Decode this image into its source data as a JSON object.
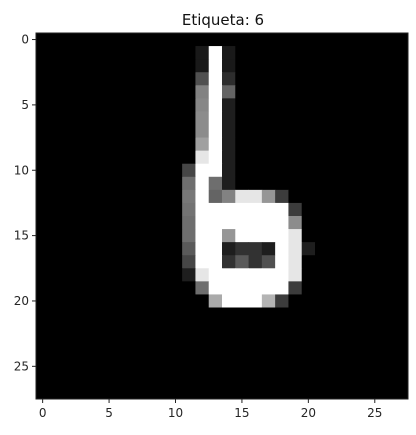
{
  "chart_data": {
    "type": "heatmap",
    "title": "Etiqueta: 6",
    "xlabel": "",
    "ylabel": "",
    "colormap": "gray",
    "value_range": [
      0,
      255
    ],
    "xlim": [
      -0.5,
      27.5
    ],
    "ylim": [
      27.5,
      -0.5
    ],
    "x_ticks": [
      "0",
      "5",
      "10",
      "15",
      "20",
      "25"
    ],
    "y_ticks": [
      "0",
      "5",
      "10",
      "15",
      "20",
      "25"
    ],
    "grid": false,
    "legend": "none",
    "rows": 28,
    "cols": 28,
    "values": [
      [
        0,
        0,
        0,
        0,
        0,
        0,
        0,
        0,
        0,
        0,
        0,
        0,
        0,
        0,
        0,
        0,
        0,
        0,
        0,
        0,
        0,
        0,
        0,
        0,
        0,
        0,
        0,
        0
      ],
      [
        0,
        0,
        0,
        0,
        0,
        0,
        0,
        0,
        0,
        0,
        0,
        0,
        25,
        255,
        25,
        0,
        0,
        0,
        0,
        0,
        0,
        0,
        0,
        0,
        0,
        0,
        0,
        0
      ],
      [
        0,
        0,
        0,
        0,
        0,
        0,
        0,
        0,
        0,
        0,
        0,
        0,
        25,
        255,
        25,
        0,
        0,
        0,
        0,
        0,
        0,
        0,
        0,
        0,
        0,
        0,
        0,
        0
      ],
      [
        0,
        0,
        0,
        0,
        0,
        0,
        0,
        0,
        0,
        0,
        0,
        0,
        80,
        255,
        45,
        0,
        0,
        0,
        0,
        0,
        0,
        0,
        0,
        0,
        0,
        0,
        0,
        0
      ],
      [
        0,
        0,
        0,
        0,
        0,
        0,
        0,
        0,
        0,
        0,
        0,
        0,
        130,
        255,
        100,
        0,
        0,
        0,
        0,
        0,
        0,
        0,
        0,
        0,
        0,
        0,
        0,
        0
      ],
      [
        0,
        0,
        0,
        0,
        0,
        0,
        0,
        0,
        0,
        0,
        0,
        0,
        135,
        255,
        30,
        0,
        0,
        0,
        0,
        0,
        0,
        0,
        0,
        0,
        0,
        0,
        0,
        0
      ],
      [
        0,
        0,
        0,
        0,
        0,
        0,
        0,
        0,
        0,
        0,
        0,
        0,
        140,
        255,
        30,
        0,
        0,
        0,
        0,
        0,
        0,
        0,
        0,
        0,
        0,
        0,
        0,
        0
      ],
      [
        0,
        0,
        0,
        0,
        0,
        0,
        0,
        0,
        0,
        0,
        0,
        0,
        140,
        255,
        30,
        0,
        0,
        0,
        0,
        0,
        0,
        0,
        0,
        0,
        0,
        0,
        0,
        0
      ],
      [
        0,
        0,
        0,
        0,
        0,
        0,
        0,
        0,
        0,
        0,
        0,
        0,
        160,
        255,
        30,
        0,
        0,
        0,
        0,
        0,
        0,
        0,
        0,
        0,
        0,
        0,
        0,
        0
      ],
      [
        0,
        0,
        0,
        0,
        0,
        0,
        0,
        0,
        0,
        0,
        0,
        0,
        230,
        255,
        30,
        0,
        0,
        0,
        0,
        0,
        0,
        0,
        0,
        0,
        0,
        0,
        0,
        0
      ],
      [
        0,
        0,
        0,
        0,
        0,
        0,
        0,
        0,
        0,
        0,
        0,
        70,
        255,
        255,
        30,
        0,
        0,
        0,
        0,
        0,
        0,
        0,
        0,
        0,
        0,
        0,
        0,
        0
      ],
      [
        0,
        0,
        0,
        0,
        0,
        0,
        0,
        0,
        0,
        0,
        0,
        110,
        255,
        110,
        30,
        0,
        0,
        0,
        0,
        0,
        0,
        0,
        0,
        0,
        0,
        0,
        0,
        0
      ],
      [
        0,
        0,
        0,
        0,
        0,
        0,
        0,
        0,
        0,
        0,
        0,
        120,
        255,
        100,
        130,
        230,
        230,
        150,
        60,
        0,
        0,
        0,
        0,
        0,
        0,
        0,
        0,
        0
      ],
      [
        0,
        0,
        0,
        0,
        0,
        0,
        0,
        0,
        0,
        0,
        0,
        115,
        255,
        255,
        255,
        255,
        255,
        255,
        255,
        60,
        0,
        0,
        0,
        0,
        0,
        0,
        0,
        0
      ],
      [
        0,
        0,
        0,
        0,
        0,
        0,
        0,
        0,
        0,
        0,
        0,
        110,
        255,
        255,
        255,
        255,
        255,
        255,
        255,
        140,
        0,
        0,
        0,
        0,
        0,
        0,
        0,
        0
      ],
      [
        0,
        0,
        0,
        0,
        0,
        0,
        0,
        0,
        0,
        0,
        0,
        110,
        255,
        255,
        150,
        255,
        255,
        255,
        255,
        230,
        0,
        0,
        0,
        0,
        0,
        0,
        0,
        0
      ],
      [
        0,
        0,
        0,
        0,
        0,
        0,
        0,
        0,
        0,
        0,
        0,
        90,
        255,
        255,
        30,
        50,
        50,
        30,
        255,
        230,
        30,
        0,
        0,
        0,
        0,
        0,
        0,
        0
      ],
      [
        0,
        0,
        0,
        0,
        0,
        0,
        0,
        0,
        0,
        0,
        0,
        70,
        255,
        255,
        50,
        90,
        50,
        80,
        255,
        230,
        0,
        0,
        0,
        0,
        0,
        0,
        0,
        0
      ],
      [
        0,
        0,
        0,
        0,
        0,
        0,
        0,
        0,
        0,
        0,
        0,
        30,
        230,
        255,
        255,
        255,
        255,
        255,
        255,
        230,
        0,
        0,
        0,
        0,
        0,
        0,
        0,
        0
      ],
      [
        0,
        0,
        0,
        0,
        0,
        0,
        0,
        0,
        0,
        0,
        0,
        0,
        110,
        255,
        255,
        255,
        255,
        255,
        255,
        60,
        0,
        0,
        0,
        0,
        0,
        0,
        0,
        0
      ],
      [
        0,
        0,
        0,
        0,
        0,
        0,
        0,
        0,
        0,
        0,
        0,
        0,
        0,
        170,
        255,
        255,
        255,
        180,
        60,
        0,
        0,
        0,
        0,
        0,
        0,
        0,
        0,
        0
      ],
      [
        0,
        0,
        0,
        0,
        0,
        0,
        0,
        0,
        0,
        0,
        0,
        0,
        0,
        0,
        0,
        0,
        0,
        0,
        0,
        0,
        0,
        0,
        0,
        0,
        0,
        0,
        0,
        0
      ],
      [
        0,
        0,
        0,
        0,
        0,
        0,
        0,
        0,
        0,
        0,
        0,
        0,
        0,
        0,
        0,
        0,
        0,
        0,
        0,
        0,
        0,
        0,
        0,
        0,
        0,
        0,
        0,
        0
      ],
      [
        0,
        0,
        0,
        0,
        0,
        0,
        0,
        0,
        0,
        0,
        0,
        0,
        0,
        0,
        0,
        0,
        0,
        0,
        0,
        0,
        0,
        0,
        0,
        0,
        0,
        0,
        0,
        0
      ],
      [
        0,
        0,
        0,
        0,
        0,
        0,
        0,
        0,
        0,
        0,
        0,
        0,
        0,
        0,
        0,
        0,
        0,
        0,
        0,
        0,
        0,
        0,
        0,
        0,
        0,
        0,
        0,
        0
      ],
      [
        0,
        0,
        0,
        0,
        0,
        0,
        0,
        0,
        0,
        0,
        0,
        0,
        0,
        0,
        0,
        0,
        0,
        0,
        0,
        0,
        0,
        0,
        0,
        0,
        0,
        0,
        0,
        0
      ],
      [
        0,
        0,
        0,
        0,
        0,
        0,
        0,
        0,
        0,
        0,
        0,
        0,
        0,
        0,
        0,
        0,
        0,
        0,
        0,
        0,
        0,
        0,
        0,
        0,
        0,
        0,
        0,
        0
      ],
      [
        0,
        0,
        0,
        0,
        0,
        0,
        0,
        0,
        0,
        0,
        0,
        0,
        0,
        0,
        0,
        0,
        0,
        0,
        0,
        0,
        0,
        0,
        0,
        0,
        0,
        0,
        0,
        0
      ]
    ]
  }
}
